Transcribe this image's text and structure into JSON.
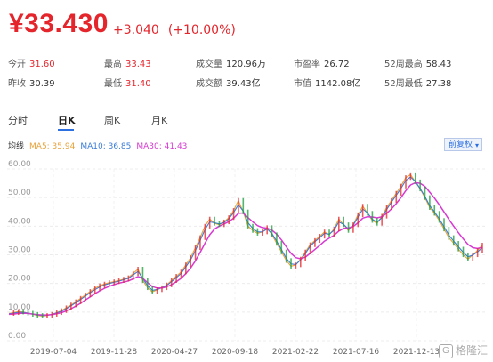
{
  "quote": {
    "price": "¥33.430",
    "change": "+3.040",
    "change_pct": "(+10.00%)"
  },
  "stats": [
    {
      "label": "今开",
      "value": "31.60",
      "color": "red"
    },
    {
      "label": "最高",
      "value": "33.43",
      "color": "red"
    },
    {
      "label": "成交量",
      "value": "120.96万",
      "color": "dark"
    },
    {
      "label": "市盈率",
      "value": "26.72",
      "color": "dark"
    },
    {
      "label": "52周最高",
      "value": "58.43",
      "color": "dark"
    },
    {
      "label": "昨收",
      "value": "30.39",
      "color": "dark"
    },
    {
      "label": "最低",
      "value": "31.40",
      "color": "red"
    },
    {
      "label": "成交额",
      "value": "39.43亿",
      "color": "dark"
    },
    {
      "label": "市值",
      "value": "1142.08亿",
      "color": "dark"
    },
    {
      "label": "52周最低",
      "value": "27.38",
      "color": "dark"
    }
  ],
  "tabs": [
    "分时",
    "日K",
    "周K",
    "月K"
  ],
  "active_tab": "日K",
  "ma": {
    "label": "均线",
    "ma5": "MA5: 35.94",
    "ma10": "MA10: 36.85",
    "ma30": "MA30: 41.43"
  },
  "adjust_button": "前复权",
  "watermark": "格隆汇",
  "chart_data": {
    "type": "line",
    "ylim": [
      0,
      60
    ],
    "y_ticks": [
      "60.00",
      "50.00",
      "40.00",
      "30.00",
      "20.00",
      "10.00",
      "0.00"
    ],
    "x_ticks": [
      "2019-07-04",
      "2019-11-28",
      "2020-04-27",
      "2020-09-18",
      "2021-02-22",
      "2021-07-16",
      "2021-12-13"
    ],
    "series": [
      {
        "color": "#e8a23a",
        "values": [
          9.5,
          9.8,
          10.2,
          10.0,
          9.6,
          9.2,
          8.8,
          8.6,
          8.8,
          9.2,
          9.8,
          10.5,
          11.5,
          12.5,
          13.6,
          14.8,
          16.0,
          17.2,
          18.3,
          19.2,
          19.8,
          20.3,
          20.6,
          21.0,
          21.5,
          22.0,
          23.5,
          25.0,
          21.0,
          18.5,
          17.0,
          17.8,
          18.5,
          19.5,
          21.0,
          22.5,
          24.0,
          26.5,
          29.0,
          32.5,
          36.0,
          40.0,
          42.5,
          41.0,
          40.5,
          41.5,
          43.0,
          45.5,
          49.0,
          45.0,
          40.0,
          38.5,
          37.5,
          38.0,
          39.5,
          37.0,
          34.0,
          31.0,
          28.0,
          26.0,
          26.5,
          28.5,
          31.0,
          33.5,
          35.0,
          36.5,
          38.0,
          37.0,
          39.0,
          42.5,
          40.5,
          38.5,
          40.5,
          44.0,
          47.0,
          44.5,
          42.0,
          41.0,
          43.5,
          46.5,
          49.0,
          51.5,
          54.0,
          57.0,
          58.0,
          55.5,
          53.0,
          50.0,
          46.5,
          44.5,
          42.0,
          39.0,
          36.0,
          34.0,
          32.0,
          30.0,
          28.5,
          30.0,
          31.5,
          33.4
        ]
      },
      {
        "color": "#3a7bd5",
        "values": [
          9.4,
          9.6,
          9.9,
          9.9,
          9.6,
          9.3,
          9.0,
          8.8,
          8.9,
          9.2,
          9.7,
          10.3,
          11.2,
          12.2,
          13.3,
          14.4,
          15.6,
          16.8,
          17.8,
          18.8,
          19.5,
          20.0,
          20.4,
          20.8,
          21.3,
          21.8,
          23.0,
          24.2,
          21.8,
          19.2,
          17.6,
          17.9,
          18.5,
          19.3,
          20.6,
          22.0,
          23.5,
          25.8,
          28.2,
          31.5,
          35.0,
          38.8,
          41.5,
          41.2,
          40.8,
          41.3,
          42.6,
          44.8,
          47.5,
          45.3,
          41.2,
          39.2,
          38.0,
          38.0,
          39.0,
          37.4,
          34.8,
          31.8,
          28.8,
          26.8,
          26.6,
          28.2,
          30.5,
          33.0,
          34.6,
          36.0,
          37.5,
          37.2,
          38.6,
          41.5,
          40.6,
          39.0,
          40.3,
          43.2,
          46.0,
          44.6,
          42.4,
          41.4,
          43.0,
          45.8,
          48.4,
          50.8,
          53.2,
          56.0,
          57.2,
          55.6,
          53.2,
          50.4,
          47.2,
          45.0,
          42.6,
          39.8,
          36.9,
          34.8,
          32.8,
          30.9,
          29.3,
          29.9,
          31.0,
          32.5
        ]
      },
      {
        "color": "#d63ad1",
        "values": [
          9.2,
          9.3,
          9.5,
          9.6,
          9.5,
          9.3,
          9.1,
          9.0,
          9.0,
          9.1,
          9.4,
          9.8,
          10.4,
          11.2,
          12.1,
          13.1,
          14.2,
          15.3,
          16.4,
          17.4,
          18.3,
          19.0,
          19.6,
          20.1,
          20.5,
          20.9,
          21.6,
          22.4,
          21.8,
          20.3,
          18.9,
          18.4,
          18.4,
          18.8,
          19.6,
          20.6,
          21.8,
          23.4,
          25.4,
          27.9,
          30.8,
          34.0,
          37.0,
          39.0,
          40.0,
          40.8,
          41.6,
          42.8,
          44.5,
          44.6,
          43.0,
          41.5,
          40.2,
          39.5,
          39.3,
          38.6,
          37.2,
          35.2,
          32.8,
          30.5,
          29.0,
          28.6,
          29.2,
          30.5,
          31.9,
          33.3,
          34.8,
          35.8,
          36.8,
          38.3,
          39.2,
          39.4,
          39.9,
          41.2,
          42.8,
          43.3,
          43.2,
          42.9,
          43.3,
          44.5,
          46.0,
          47.9,
          50.0,
          52.4,
          54.4,
          55.2,
          55.0,
          53.9,
          51.9,
          49.8,
          47.5,
          45.0,
          42.4,
          40.0,
          37.7,
          35.6,
          33.6,
          32.5,
          32.2,
          32.6
        ]
      }
    ]
  }
}
